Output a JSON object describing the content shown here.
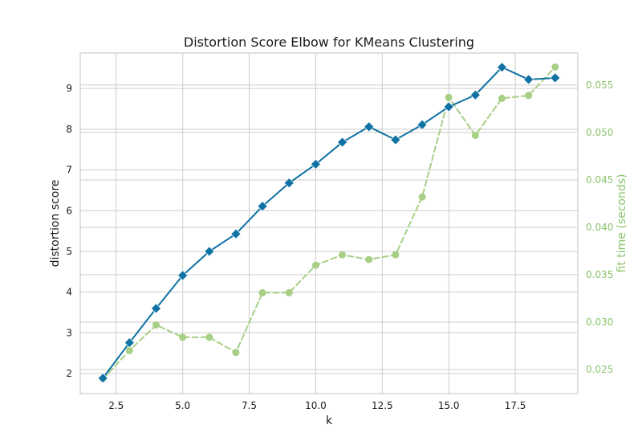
{
  "chart_data": {
    "type": "line",
    "title": "Distortion Score Elbow for KMeans Clustering",
    "xlabel": "k",
    "ylabel": "distortion score",
    "y2label": "fit time (seconds)",
    "xlim": [
      1.15,
      19.85
    ],
    "ylim": [
      1.51,
      9.87
    ],
    "y2lim": [
      0.02246,
      0.05838
    ],
    "xticks": [
      2.5,
      5.0,
      7.5,
      10.0,
      12.5,
      15.0,
      17.5
    ],
    "xtick_labels": [
      "2.5",
      "5.0",
      "7.5",
      "10.0",
      "12.5",
      "15.0",
      "17.5"
    ],
    "yticks": [
      2,
      3,
      4,
      5,
      6,
      7,
      8,
      9
    ],
    "ytick_labels": [
      "2",
      "3",
      "4",
      "5",
      "6",
      "7",
      "8",
      "9"
    ],
    "y2ticks": [
      0.025,
      0.03,
      0.035,
      0.04,
      0.045,
      0.05,
      0.055
    ],
    "y2tick_labels": [
      "0.025",
      "0.030",
      "0.035",
      "0.040",
      "0.045",
      "0.050",
      "0.055"
    ],
    "grid": true,
    "x": [
      2,
      3,
      4,
      5,
      6,
      7,
      8,
      9,
      10,
      11,
      12,
      13,
      14,
      15,
      16,
      17,
      18,
      19
    ],
    "series": [
      {
        "axis": "left",
        "style": "solid",
        "marker": "diamond",
        "color": "#0f72a3",
        "values": [
          1.89,
          2.76,
          3.6,
          4.41,
          5.0,
          5.43,
          6.11,
          6.68,
          7.14,
          7.68,
          8.06,
          7.74,
          8.11,
          8.55,
          8.84,
          9.52,
          9.22,
          9.26
        ]
      },
      {
        "axis": "right",
        "style": "dashed",
        "marker": "circle",
        "color": "#a7cf86",
        "values": [
          0.024,
          0.027,
          0.0297,
          0.0284,
          0.0284,
          0.0268,
          0.0331,
          0.0331,
          0.036,
          0.0371,
          0.0366,
          0.0371,
          0.0432,
          0.0537,
          0.0497,
          0.0536,
          0.0539,
          0.0569
        ]
      }
    ],
    "colors": {
      "axis_left": "#000000",
      "axis_right": "#8bc46b",
      "grid": "#cccccc",
      "frame": "#cccccc"
    }
  }
}
